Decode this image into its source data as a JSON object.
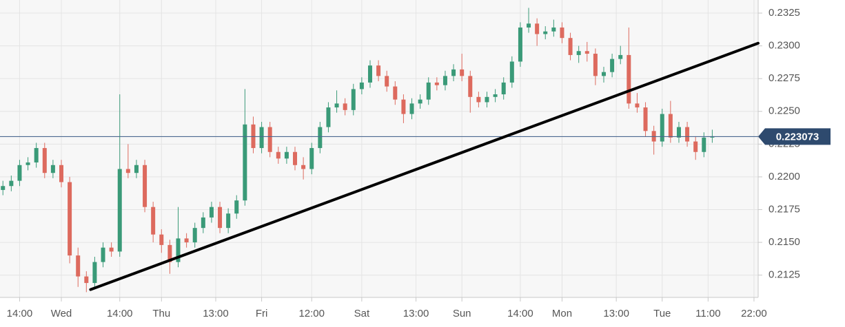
{
  "chart_data": {
    "type": "candlestick",
    "x": [
      -14,
      -12,
      -10,
      -8,
      -6,
      -4,
      -2,
      0,
      2,
      4,
      6,
      8,
      10,
      12,
      14,
      16,
      18,
      20,
      22,
      24,
      26,
      28,
      30,
      32,
      34,
      36,
      38,
      40,
      42,
      44,
      46,
      48,
      50,
      52,
      54,
      56,
      58,
      60,
      62,
      64,
      66,
      68,
      70,
      72,
      74,
      76,
      78,
      80,
      82,
      84,
      86,
      88,
      90,
      92,
      94,
      96,
      98,
      100,
      102,
      104,
      106,
      108,
      110,
      112,
      114,
      116,
      118,
      120,
      122,
      124,
      126,
      128,
      130,
      132,
      134,
      136,
      138,
      140,
      142,
      144,
      146,
      148,
      150,
      152,
      154,
      156
    ],
    "open": [
      0.219,
      0.2193,
      0.2197,
      0.2209,
      0.2211,
      0.2222,
      0.2203,
      0.2209,
      0.2196,
      0.214,
      0.2124,
      0.2119,
      0.2135,
      0.2146,
      0.2143,
      0.2206,
      0.2203,
      0.2209,
      0.2177,
      0.2156,
      0.2148,
      0.2135,
      0.2153,
      0.215,
      0.2161,
      0.2169,
      0.2177,
      0.2161,
      0.2172,
      0.2182,
      0.224,
      0.2222,
      0.2238,
      0.2219,
      0.2214,
      0.2219,
      0.2209,
      0.2206,
      0.2222,
      0.2238,
      0.2253,
      0.2256,
      0.2251,
      0.2267,
      0.2272,
      0.2285,
      0.2277,
      0.2269,
      0.2259,
      0.2248,
      0.2256,
      0.2259,
      0.2272,
      0.227,
      0.2277,
      0.2282,
      0.2277,
      0.2261,
      0.2257,
      0.2261,
      0.2263,
      0.2272,
      0.2288,
      0.2314,
      0.2317,
      0.2309,
      0.2311,
      0.2314,
      0.2306,
      0.2293,
      0.2296,
      0.2294,
      0.2277,
      0.228,
      0.229,
      0.2293,
      0.2256,
      0.2253,
      0.2235,
      0.2227,
      0.2248,
      0.223,
      0.2238,
      0.2227,
      0.2219,
      0.223
    ],
    "high": [
      0.2197,
      0.2201,
      0.2213,
      0.2215,
      0.2226,
      0.2226,
      0.2213,
      0.2213,
      0.22,
      0.2146,
      0.2128,
      0.2139,
      0.215,
      0.215,
      0.2263,
      0.2225,
      0.2213,
      0.2213,
      0.2181,
      0.216,
      0.2152,
      0.2177,
      0.2157,
      0.2165,
      0.2173,
      0.2181,
      0.2181,
      0.2176,
      0.2186,
      0.2267,
      0.2246,
      0.2242,
      0.2242,
      0.2223,
      0.2223,
      0.2223,
      0.2215,
      0.2226,
      0.2242,
      0.2257,
      0.2266,
      0.226,
      0.2271,
      0.2276,
      0.2289,
      0.2289,
      0.2281,
      0.2273,
      0.2263,
      0.226,
      0.2263,
      0.2276,
      0.2276,
      0.2281,
      0.2286,
      0.2294,
      0.2281,
      0.2265,
      0.2265,
      0.2267,
      0.2276,
      0.2292,
      0.2318,
      0.2329,
      0.2321,
      0.2315,
      0.232,
      0.2318,
      0.231,
      0.23,
      0.2303,
      0.2298,
      0.2284,
      0.2294,
      0.23,
      0.2314,
      0.2264,
      0.2257,
      0.2239,
      0.2252,
      0.2258,
      0.2242,
      0.2242,
      0.2231,
      0.2234,
      0.2236
    ],
    "low": [
      0.2186,
      0.2189,
      0.2193,
      0.2205,
      0.2207,
      0.2199,
      0.2199,
      0.2192,
      0.2134,
      0.2116,
      0.2112,
      0.2115,
      0.2131,
      0.2139,
      0.2139,
      0.2199,
      0.2199,
      0.2173,
      0.215,
      0.2142,
      0.2126,
      0.2131,
      0.2146,
      0.2146,
      0.2157,
      0.2165,
      0.2157,
      0.2157,
      0.2168,
      0.2178,
      0.2218,
      0.2218,
      0.2215,
      0.221,
      0.221,
      0.2205,
      0.2198,
      0.2202,
      0.2218,
      0.2234,
      0.2249,
      0.2247,
      0.2247,
      0.2263,
      0.2268,
      0.2273,
      0.2265,
      0.2255,
      0.2241,
      0.2244,
      0.2252,
      0.2255,
      0.2266,
      0.2266,
      0.2273,
      0.2273,
      0.2249,
      0.2253,
      0.2253,
      0.2257,
      0.2259,
      0.2268,
      0.2284,
      0.231,
      0.23,
      0.2305,
      0.2307,
      0.2302,
      0.2289,
      0.2287,
      0.2288,
      0.227,
      0.2272,
      0.2276,
      0.2286,
      0.2252,
      0.2249,
      0.2231,
      0.2217,
      0.2223,
      0.2226,
      0.2226,
      0.2223,
      0.2213,
      0.2215,
      0.2226
    ],
    "close": [
      0.2193,
      0.2197,
      0.2209,
      0.2211,
      0.2222,
      0.2203,
      0.2209,
      0.2196,
      0.214,
      0.2124,
      0.2119,
      0.2135,
      0.2146,
      0.2143,
      0.2206,
      0.2203,
      0.2209,
      0.2177,
      0.2156,
      0.2148,
      0.2135,
      0.2153,
      0.215,
      0.2161,
      0.2169,
      0.2177,
      0.2161,
      0.2172,
      0.2182,
      0.224,
      0.2222,
      0.2238,
      0.2219,
      0.2214,
      0.2219,
      0.2209,
      0.2206,
      0.2222,
      0.2238,
      0.2253,
      0.2256,
      0.2251,
      0.2267,
      0.2272,
      0.2285,
      0.2277,
      0.2269,
      0.2259,
      0.2248,
      0.2256,
      0.2259,
      0.2272,
      0.227,
      0.2277,
      0.2282,
      0.2277,
      0.2261,
      0.2257,
      0.2261,
      0.2263,
      0.2272,
      0.2288,
      0.2314,
      0.2317,
      0.2309,
      0.2311,
      0.2314,
      0.2306,
      0.2293,
      0.2296,
      0.2294,
      0.2277,
      0.228,
      0.229,
      0.2293,
      0.2256,
      0.2253,
      0.2235,
      0.2227,
      0.2248,
      0.223,
      0.2238,
      0.2227,
      0.2219,
      0.223,
      0.2231
    ],
    "up_color": "#3a9a78",
    "down_color": "#dd6a5e",
    "xlim": [
      -14.7,
      167
    ],
    "ylim": [
      0.2108,
      0.2335
    ],
    "xticks": [
      {
        "value": -10,
        "label": "14:00"
      },
      {
        "value": 0,
        "label": "Wed"
      },
      {
        "value": 14,
        "label": "14:00"
      },
      {
        "value": 24,
        "label": "Thu"
      },
      {
        "value": 37,
        "label": "13:00"
      },
      {
        "value": 48,
        "label": "Fri"
      },
      {
        "value": 60,
        "label": "12:00"
      },
      {
        "value": 72,
        "label": "Sat"
      },
      {
        "value": 85,
        "label": "13:00"
      },
      {
        "value": 96,
        "label": "Sun"
      },
      {
        "value": 110,
        "label": "14:00"
      },
      {
        "value": 120,
        "label": "Mon"
      },
      {
        "value": 133,
        "label": "13:00"
      },
      {
        "value": 144,
        "label": "Tue"
      },
      {
        "value": 155,
        "label": "11:00"
      },
      {
        "value": 166,
        "label": "22:00"
      }
    ],
    "yticks": [
      {
        "value": 0.2125,
        "label": "0.2125"
      },
      {
        "value": 0.215,
        "label": "0.2150"
      },
      {
        "value": 0.2175,
        "label": "0.2175"
      },
      {
        "value": 0.22,
        "label": "0.2200"
      },
      {
        "value": 0.2225,
        "label": "0.2225"
      },
      {
        "value": 0.225,
        "label": "0.2250"
      },
      {
        "value": 0.2275,
        "label": "0.2275"
      },
      {
        "value": 0.23,
        "label": "0.2300"
      },
      {
        "value": 0.2325,
        "label": "0.2325"
      }
    ],
    "grid": true,
    "last_price": {
      "value": 0.223073,
      "label": "0.223073",
      "color": "#2e4a6e"
    },
    "trendline": {
      "x": [
        7,
        167
      ],
      "y": [
        0.2114,
        0.2302
      ],
      "color": "#000000"
    }
  }
}
